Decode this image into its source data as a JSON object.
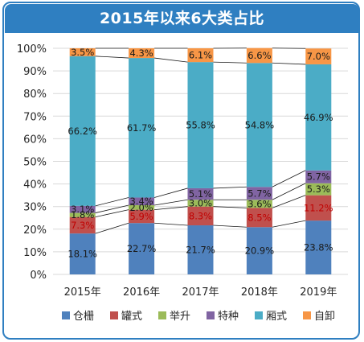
{
  "title": "2015年以来6大类占比",
  "chart_data": {
    "type": "bar",
    "stacked": true,
    "categories": [
      "2015年",
      "2016年",
      "2017年",
      "2018年",
      "2019年"
    ],
    "series": [
      {
        "name": "仓栅",
        "color": "#4f81bd",
        "values": [
          18.1,
          22.7,
          21.7,
          20.9,
          23.8
        ],
        "labels": [
          "18.1%",
          "22.7%",
          "21.7%",
          "20.9%",
          "23.8%"
        ],
        "label_color": "#1a1a1a"
      },
      {
        "name": "罐式",
        "color": "#c0504d",
        "values": [
          7.3,
          5.9,
          8.3,
          8.5,
          11.2
        ],
        "labels": [
          "7.3%",
          "5.9%",
          "8.3%",
          "8.5%",
          "11.2%"
        ],
        "label_color": "#c00000"
      },
      {
        "name": "举升",
        "color": "#9bbb59",
        "values": [
          1.8,
          2.0,
          3.0,
          3.6,
          5.3
        ],
        "labels": [
          "1.8%",
          "2.0%",
          "3.0%",
          "3.6%",
          "5.3%"
        ],
        "label_color": "#1a1a1a"
      },
      {
        "name": "特种",
        "color": "#8064a2",
        "values": [
          3.1,
          3.4,
          5.1,
          5.7,
          5.7
        ],
        "labels": [
          "3.1%",
          "3.4%",
          "5.1%",
          "5.7%",
          "5.7%"
        ],
        "label_color": "#1a1a1a"
      },
      {
        "name": "厢式",
        "color": "#4bacc6",
        "values": [
          66.2,
          61.7,
          55.8,
          54.8,
          46.9
        ],
        "labels": [
          "66.2%",
          "61.7%",
          "55.8%",
          "54.8%",
          "46.9%"
        ],
        "label_color": "#1a1a1a"
      },
      {
        "name": "自卸",
        "color": "#f79646",
        "values": [
          3.5,
          4.3,
          6.1,
          6.6,
          7.0
        ],
        "labels": [
          "3.5%",
          "4.3%",
          "6.1%",
          "6.6%",
          "7.0%"
        ],
        "label_color": "#1a1a1a"
      }
    ],
    "ylim": [
      0,
      100
    ],
    "yticks": [
      "0%",
      "10%",
      "20%",
      "30%",
      "40%",
      "50%",
      "60%",
      "70%",
      "80%",
      "90%",
      "100%"
    ],
    "grid": true,
    "legend_position": "bottom",
    "series_lines": true
  }
}
